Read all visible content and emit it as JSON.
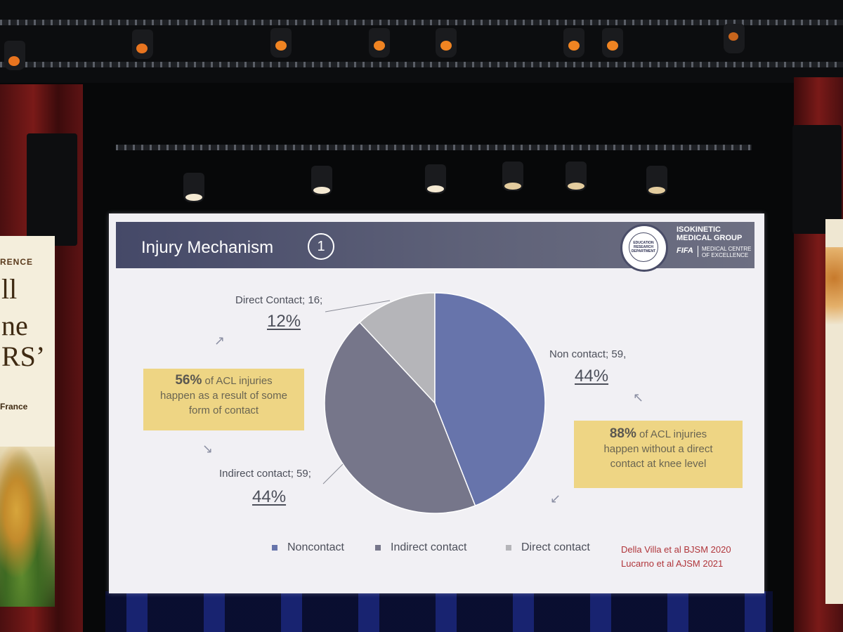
{
  "slide": {
    "title": "Injury Mechanism",
    "number": "1",
    "logo": {
      "seal_text": "EDUCATION RESEARCH DEPARTMENT",
      "org_line1": "ISOKINETIC",
      "org_line2": "MEDICAL GROUP",
      "fifa": "FIFA",
      "centre_line1": "MEDICAL CENTRE",
      "centre_line2": "OF EXCELLENCE"
    },
    "callouts": {
      "contact": {
        "pct": "56%",
        "text_a": " of ACL injuries",
        "text_b": "happen as a result of some",
        "text_c": "form of contact"
      },
      "noncontact": {
        "pct": "88%",
        "text_a": " of ACL injuries",
        "text_b": "happen without a direct",
        "text_c": "contact at knee level"
      }
    },
    "references": [
      "Della Villa et al BJSM 2020",
      "Lucarno et al AJSM 2021"
    ]
  },
  "banner_left": {
    "small": "RENCE",
    "line1": "ll",
    "line2": "ne",
    "line3": "RS’",
    "place": "France"
  },
  "chart_data": {
    "type": "pie",
    "categories": [
      "Noncontact",
      "Indirect contact",
      "Direct contact"
    ],
    "values": [
      59,
      59,
      16
    ],
    "percent_labels": [
      "44%",
      "44%",
      "12%"
    ],
    "data_labels": [
      "Non contact; 59,",
      "Indirect contact; 59;",
      "Direct Contact; 16;"
    ],
    "colors": [
      "#6774ab",
      "#76768a",
      "#b5b5b9"
    ],
    "legend": "bottom"
  }
}
